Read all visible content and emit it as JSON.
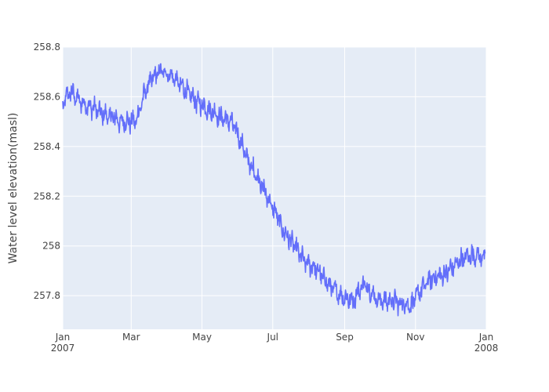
{
  "chart_data": {
    "type": "line",
    "title": "",
    "xlabel": "",
    "ylabel": "Water level elevation(masl)",
    "x_range": [
      "2007-01-01",
      "2008-01-01"
    ],
    "ylim": [
      257.665,
      258.8
    ],
    "grid": true,
    "legend": "none",
    "colors": {
      "line": "#636efa",
      "plot_bg": "#e5ecf6",
      "grid": "#ffffff",
      "text": "#444444"
    },
    "x_ticks": [
      {
        "date": "2007-01-01",
        "label": "Jan",
        "sublabel": "2007"
      },
      {
        "date": "2007-03-01",
        "label": "Mar",
        "sublabel": ""
      },
      {
        "date": "2007-05-01",
        "label": "May",
        "sublabel": ""
      },
      {
        "date": "2007-07-01",
        "label": "Jul",
        "sublabel": ""
      },
      {
        "date": "2007-09-01",
        "label": "Sep",
        "sublabel": ""
      },
      {
        "date": "2007-11-01",
        "label": "Nov",
        "sublabel": ""
      },
      {
        "date": "2008-01-01",
        "label": "Jan",
        "sublabel": "2008"
      }
    ],
    "y_ticks": [
      {
        "value": 257.8,
        "label": "257.8"
      },
      {
        "value": 258.0,
        "label": "258"
      },
      {
        "value": 258.2,
        "label": "258.2"
      },
      {
        "value": 258.4,
        "label": "258.4"
      },
      {
        "value": 258.6,
        "label": "258.6"
      },
      {
        "value": 258.8,
        "label": "258.8"
      }
    ],
    "series": [
      {
        "x": [
          "2007-01-01",
          "2007-01-04",
          "2007-01-08",
          "2007-01-12",
          "2007-01-16",
          "2007-01-20",
          "2007-01-25",
          "2007-01-30",
          "2007-02-04",
          "2007-02-09",
          "2007-02-14",
          "2007-02-19",
          "2007-02-24",
          "2007-03-01",
          "2007-03-05",
          "2007-03-09",
          "2007-03-13",
          "2007-03-17",
          "2007-03-21",
          "2007-03-25",
          "2007-03-29",
          "2007-04-02",
          "2007-04-06",
          "2007-04-10",
          "2007-04-14",
          "2007-04-18",
          "2007-04-22",
          "2007-04-26",
          "2007-05-01",
          "2007-05-06",
          "2007-05-11",
          "2007-05-16",
          "2007-05-21",
          "2007-05-26",
          "2007-05-31",
          "2007-06-05",
          "2007-06-10",
          "2007-06-15",
          "2007-06-20",
          "2007-06-25",
          "2007-06-30",
          "2007-07-05",
          "2007-07-10",
          "2007-07-15",
          "2007-07-20",
          "2007-07-25",
          "2007-07-30",
          "2007-08-04",
          "2007-08-09",
          "2007-08-14",
          "2007-08-19",
          "2007-08-24",
          "2007-08-29",
          "2007-09-03",
          "2007-09-08",
          "2007-09-13",
          "2007-09-18",
          "2007-09-23",
          "2007-09-28",
          "2007-10-03",
          "2007-10-08",
          "2007-10-11",
          "2007-10-14",
          "2007-10-18",
          "2007-10-23",
          "2007-10-28",
          "2007-11-02",
          "2007-11-07",
          "2007-11-12",
          "2007-11-17",
          "2007-11-22",
          "2007-11-27",
          "2007-12-02",
          "2007-12-07",
          "2007-12-12",
          "2007-12-17",
          "2007-12-22",
          "2007-12-27",
          "2007-12-31"
        ],
        "y": [
          258.56,
          258.6,
          258.62,
          258.6,
          258.58,
          258.57,
          258.56,
          258.55,
          258.53,
          258.52,
          258.52,
          258.5,
          258.5,
          258.5,
          258.5,
          258.56,
          258.62,
          258.66,
          258.68,
          258.7,
          258.7,
          258.69,
          258.68,
          258.66,
          258.64,
          258.62,
          258.6,
          258.58,
          258.57,
          258.55,
          258.54,
          258.52,
          258.51,
          258.5,
          258.46,
          258.4,
          258.34,
          258.3,
          258.26,
          258.21,
          258.16,
          258.12,
          258.06,
          258.03,
          258.0,
          257.96,
          257.93,
          257.92,
          257.9,
          257.87,
          257.84,
          257.82,
          257.8,
          257.79,
          257.78,
          257.82,
          257.85,
          257.82,
          257.79,
          257.78,
          257.78,
          257.78,
          257.78,
          257.77,
          257.77,
          257.76,
          257.8,
          257.83,
          257.86,
          257.87,
          257.88,
          257.89,
          257.91,
          257.93,
          257.95,
          257.96,
          257.965,
          257.96,
          257.95
        ]
      }
    ]
  }
}
